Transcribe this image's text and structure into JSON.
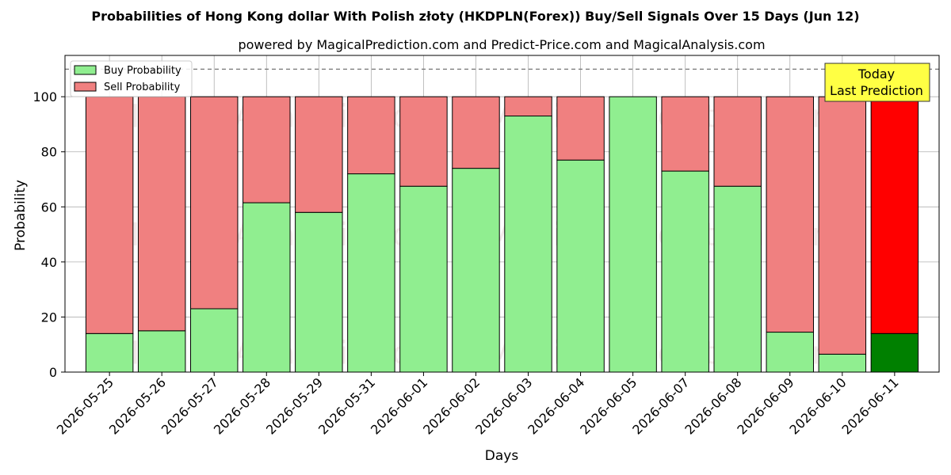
{
  "chart_data": {
    "type": "bar",
    "stacked": true,
    "title": "Probabilities of Hong Kong dollar With Polish złoty (HKDPLN(Forex)) Buy/Sell Signals Over 15 Days (Jun 12)",
    "subtitle": "powered by MagicalPrediction.com and Predict-Price.com and MagicalAnalysis.com",
    "xlabel": "Days",
    "ylabel": "Probability",
    "ylim": [
      0,
      115
    ],
    "yticks": [
      0,
      20,
      40,
      60,
      80,
      100
    ],
    "grid": true,
    "legend_position": "top-left",
    "reference_line": 110,
    "categories": [
      "2026-05-25",
      "2026-05-26",
      "2026-05-27",
      "2026-05-28",
      "2026-05-29",
      "2026-05-31",
      "2026-06-01",
      "2026-06-02",
      "2026-06-03",
      "2026-06-04",
      "2026-06-05",
      "2026-06-07",
      "2026-06-08",
      "2026-06-09",
      "2026-06-10",
      "2026-06-11"
    ],
    "series": [
      {
        "name": "Buy Probability",
        "color": "#90ee90",
        "highlight_color": "#008000",
        "values": [
          14,
          15,
          23,
          61.5,
          58,
          72,
          67.5,
          74,
          93,
          77,
          100,
          73,
          67.5,
          14.5,
          6.5,
          14
        ]
      },
      {
        "name": "Sell Probability",
        "color": "#f08080",
        "highlight_color": "#ff0000",
        "values": [
          86,
          85,
          77,
          38.5,
          42,
          28,
          32.5,
          26,
          7,
          23,
          0,
          27,
          32.5,
          85.5,
          93.5,
          86
        ]
      }
    ],
    "highlight_index": 15,
    "annotation": {
      "text_line1": "Today",
      "text_line2": "Last Prediction",
      "color": "#ffff44"
    },
    "watermarks": [
      "MagicalAnalysis.com",
      "MagicalPrediction.com"
    ]
  }
}
